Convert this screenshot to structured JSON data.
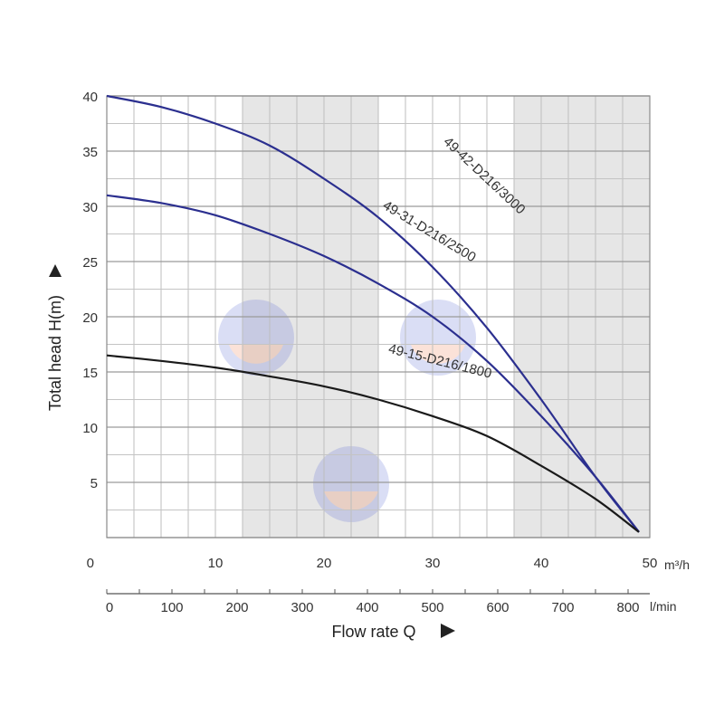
{
  "chart_data": {
    "type": "line",
    "title": "",
    "ylabel": "Total head H(m)",
    "xlabel": "Flow rate Q",
    "x_unit_top": "m³/h",
    "x_unit_bottom": "l/min",
    "xlim": [
      0,
      50
    ],
    "ylim": [
      0,
      40
    ],
    "x_ticks_m3h": [
      "0",
      "10",
      "20",
      "30",
      "40",
      "50"
    ],
    "x_ticks_lmin": [
      "0",
      "100",
      "200",
      "300",
      "400",
      "500",
      "600",
      "700",
      "800"
    ],
    "y_ticks": [
      "5",
      "10",
      "15",
      "20",
      "25",
      "30",
      "35",
      "40"
    ],
    "y_zero_label": "0",
    "grid": true,
    "shaded_bands_x": [
      [
        12.5,
        25
      ],
      [
        37.5,
        50
      ]
    ],
    "series": [
      {
        "name": "49-42-D216/3000",
        "color": "#2b2f8f",
        "x": [
          0,
          5,
          10,
          15,
          20,
          25,
          30,
          35,
          40,
          45,
          49
        ],
        "y": [
          40,
          39,
          37.5,
          35.5,
          32.5,
          29,
          24.5,
          19,
          12.5,
          5.5,
          0.5
        ]
      },
      {
        "name": "49-31-D216/2500",
        "color": "#2b2f8f",
        "x": [
          0,
          5,
          10,
          15,
          20,
          25,
          30,
          35,
          40,
          45,
          49
        ],
        "y": [
          31,
          30.3,
          29.2,
          27.5,
          25.5,
          23,
          20,
          16,
          11,
          5.5,
          0.5
        ]
      },
      {
        "name": "49-15-D216/1800",
        "color": "#1a1a1a",
        "x": [
          0,
          5,
          10,
          15,
          20,
          25,
          30,
          35,
          40,
          45,
          49
        ],
        "y": [
          16.5,
          16,
          15.4,
          14.6,
          13.7,
          12.5,
          11,
          9.2,
          6.5,
          3.5,
          0.5
        ]
      }
    ]
  }
}
